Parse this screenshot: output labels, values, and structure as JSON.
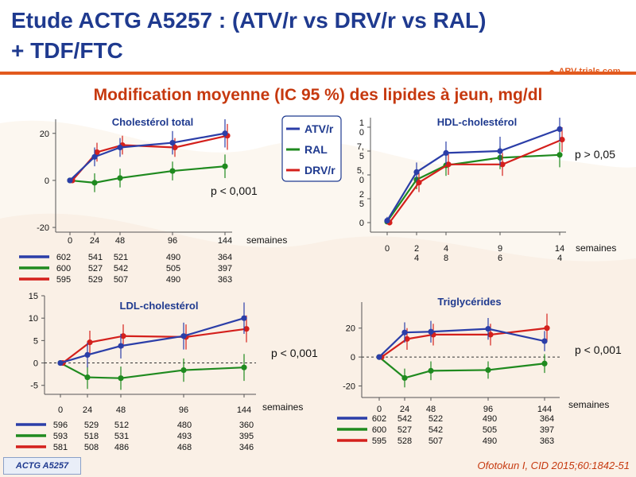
{
  "header": {
    "title_line1": "Etude ACTG A5257 : (ATV/r vs DRV/r vs RAL)",
    "title_line2": "+ TDF/FTC",
    "subtitle": "Modification moyenne (IC 95 %) des lipides à jeun, mg/dl",
    "logo_text": "ARV-trials.com",
    "logo_icon": "arv-trials-logo-icon"
  },
  "legend": {
    "items": [
      {
        "label": "ATV/r",
        "color": "#2b3ea8"
      },
      {
        "label": "RAL",
        "color": "#1f8a1f"
      },
      {
        "label": "DRV/r",
        "color": "#d4201c"
      }
    ]
  },
  "colors": {
    "atv": "#2b3ea8",
    "ral": "#1f8a1f",
    "drv": "#d4201c",
    "accent": "#e25a1e",
    "title": "#1f3a8f"
  },
  "chart_data": [
    {
      "id": "chol",
      "type": "line",
      "title": "Cholestérol total",
      "x": [
        0,
        24,
        48,
        96,
        144
      ],
      "x_tick_labels": [
        "0",
        "24",
        "48",
        "96",
        "144"
      ],
      "xlabel": "semaines",
      "ylim": [
        -22,
        26
      ],
      "y_ticks": [
        20,
        0,
        -20
      ],
      "y_tick_labels": [
        "20",
        "0",
        "-20"
      ],
      "pvalue": "p < 0,001",
      "series": [
        {
          "name": "ATV/r",
          "key": "atv",
          "values": [
            0,
            10,
            14,
            16,
            20
          ],
          "ci": [
            [
              0,
              0
            ],
            [
              6,
              14
            ],
            [
              10,
              18
            ],
            [
              11,
              21
            ],
            [
              14,
              26
            ]
          ]
        },
        {
          "name": "RAL",
          "key": "ral",
          "values": [
            0,
            -1,
            1,
            4,
            6
          ],
          "ci": [
            [
              0,
              0
            ],
            [
              -5,
              3
            ],
            [
              -3,
              5
            ],
            [
              0,
              8
            ],
            [
              1,
              11
            ]
          ]
        },
        {
          "name": "DRV/r",
          "key": "drv",
          "values": [
            0,
            12,
            15,
            14,
            19
          ],
          "ci": [
            [
              0,
              0
            ],
            [
              8,
              16
            ],
            [
              11,
              19
            ],
            [
              10,
              18
            ],
            [
              13,
              24
            ]
          ]
        }
      ],
      "n_rows": [
        {
          "key": "atv",
          "values": [
            "602",
            "541",
            "521",
            "490",
            "364"
          ]
        },
        {
          "key": "ral",
          "values": [
            "600",
            "527",
            "542",
            "505",
            "397"
          ]
        },
        {
          "key": "drv",
          "values": [
            "595",
            "529",
            "507",
            "490",
            "363"
          ]
        }
      ]
    },
    {
      "id": "hdl",
      "type": "line",
      "title": "HDL-cholestérol",
      "x": [
        0,
        24,
        48,
        96,
        144
      ],
      "x_tick_labels": [
        "0",
        "2\n4",
        "4\n8",
        "9\n6",
        "14\n4"
      ],
      "xlabel": "semaines",
      "ylim": [
        -1,
        11
      ],
      "y_ticks": [
        0,
        2.5,
        5,
        7.5,
        10
      ],
      "y_tick_labels": [
        "0",
        "2\n5",
        "5,\n0",
        "7,\n5",
        "1\n0"
      ],
      "pvalue": "p > 0,05",
      "series": [
        {
          "name": "ATV/r",
          "key": "atv",
          "values": [
            0.2,
            5.3,
            7.3,
            7.5,
            9.8
          ],
          "ci": [
            [
              0,
              0.6
            ],
            [
              4.3,
              6.3
            ],
            [
              6.1,
              8.5
            ],
            [
              6.0,
              9.0
            ],
            [
              8.5,
              11.0
            ]
          ]
        },
        {
          "name": "RAL",
          "key": "ral",
          "values": [
            0.1,
            4.5,
            6.0,
            6.8,
            7.1
          ],
          "ci": [
            [
              0,
              0.5
            ],
            [
              3.5,
              5.5
            ],
            [
              4.9,
              7.1
            ],
            [
              5.6,
              8.0
            ],
            [
              5.8,
              8.4
            ]
          ]
        },
        {
          "name": "DRV/r",
          "key": "drv",
          "values": [
            0,
            4.2,
            6.1,
            6.1,
            8.7
          ],
          "ci": [
            [
              0,
              0.4
            ],
            [
              3.2,
              5.2
            ],
            [
              5.0,
              7.2
            ],
            [
              4.9,
              7.3
            ],
            [
              7.4,
              10.0
            ]
          ]
        }
      ]
    },
    {
      "id": "ldl",
      "type": "line",
      "title": "LDL-cholestérol",
      "x": [
        0,
        24,
        48,
        96,
        144
      ],
      "x_tick_labels": [
        "0",
        "24",
        "48",
        "96",
        "144"
      ],
      "xlabel": "semaines",
      "ylim": [
        -7,
        15
      ],
      "y_ticks": [
        15,
        10,
        5,
        0,
        -5
      ],
      "y_tick_labels": [
        "15",
        "10",
        "5",
        "0",
        "-5"
      ],
      "pvalue": "p < 0,001",
      "series": [
        {
          "name": "ATV/r",
          "key": "atv",
          "values": [
            0,
            1.8,
            3.8,
            6,
            10
          ],
          "ci": [
            [
              0,
              0
            ],
            [
              -1,
              4.5
            ],
            [
              1,
              6.5
            ],
            [
              3,
              9
            ],
            [
              6.5,
              13.5
            ]
          ]
        },
        {
          "name": "RAL",
          "key": "ral",
          "values": [
            0,
            -3.2,
            -3.4,
            -1.6,
            -1.0
          ],
          "ci": [
            [
              0,
              0
            ],
            [
              -5.8,
              -0.6
            ],
            [
              -6,
              -0.8
            ],
            [
              -4.2,
              1
            ],
            [
              -4,
              2
            ]
          ]
        },
        {
          "name": "DRV/r",
          "key": "drv",
          "values": [
            0,
            4.6,
            6,
            5.8,
            7.6
          ],
          "ci": [
            [
              0,
              0
            ],
            [
              2,
              7.2
            ],
            [
              3.4,
              8.6
            ],
            [
              3,
              8.6
            ],
            [
              4.6,
              10.6
            ]
          ]
        }
      ],
      "n_rows": [
        {
          "key": "atv",
          "values": [
            "596",
            "529",
            "512",
            "480",
            "360"
          ]
        },
        {
          "key": "ral",
          "values": [
            "593",
            "518",
            "531",
            "493",
            "395"
          ]
        },
        {
          "key": "drv",
          "values": [
            "581",
            "508",
            "486",
            "468",
            "346"
          ]
        }
      ]
    },
    {
      "id": "tg",
      "type": "line",
      "title": "Triglycérides",
      "x": [
        0,
        24,
        48,
        96,
        144
      ],
      "x_tick_labels": [
        "0",
        "24",
        "48",
        "96",
        "144"
      ],
      "xlabel": "semaines",
      "ylim": [
        -28,
        38
      ],
      "y_ticks": [
        20,
        0,
        -20
      ],
      "y_tick_labels": [
        "20",
        "0",
        "-20"
      ],
      "pvalue": "p < 0,001",
      "series": [
        {
          "name": "ATV/r",
          "key": "atv",
          "values": [
            0,
            17,
            17.5,
            19.5,
            11
          ],
          "ci": [
            [
              0,
              0
            ],
            [
              10,
              24
            ],
            [
              10,
              25
            ],
            [
              12,
              27
            ],
            [
              4,
              18
            ]
          ]
        },
        {
          "name": "RAL",
          "key": "ral",
          "values": [
            0,
            -14.5,
            -9.5,
            -9,
            -4.5
          ],
          "ci": [
            [
              0,
              0
            ],
            [
              -21,
              -8
            ],
            [
              -16,
              -3
            ],
            [
              -15,
              -3
            ],
            [
              -11,
              2
            ]
          ]
        },
        {
          "name": "DRV/r",
          "key": "drv",
          "values": [
            0,
            12.5,
            15.5,
            15.5,
            20
          ],
          "ci": [
            [
              0,
              0
            ],
            [
              5,
              20
            ],
            [
              8,
              23
            ],
            [
              8,
              23
            ],
            [
              11,
              30
            ]
          ]
        }
      ],
      "n_rows": [
        {
          "key": "atv",
          "values": [
            "602",
            "542",
            "522",
            "490",
            "364"
          ]
        },
        {
          "key": "ral",
          "values": [
            "600",
            "527",
            "542",
            "505",
            "397"
          ]
        },
        {
          "key": "drv",
          "values": [
            "595",
            "528",
            "507",
            "490",
            "363"
          ]
        }
      ]
    }
  ],
  "footer": {
    "tag": "ACTG A5257",
    "citation": "Ofotokun I, CID 2015;60:1842-51"
  }
}
